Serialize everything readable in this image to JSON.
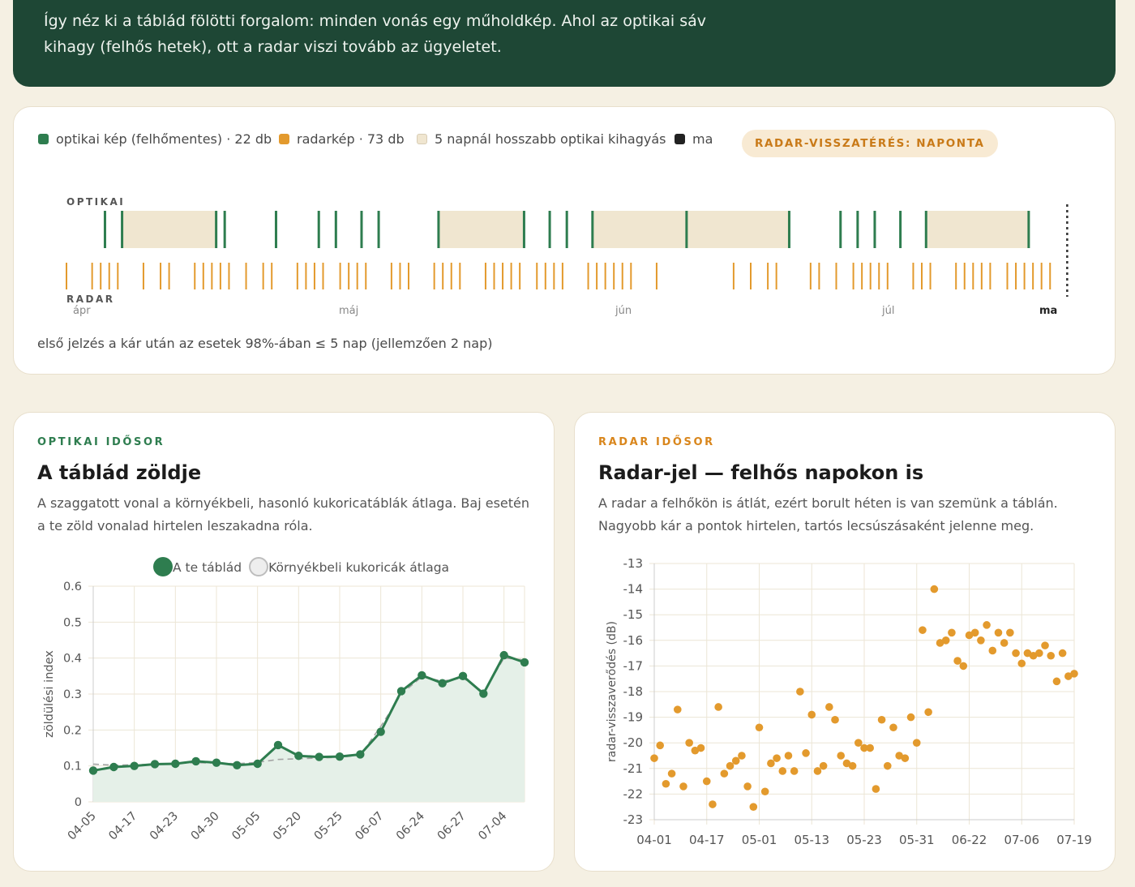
{
  "intro": "Így néz ki a táblád fölötti forgalom: minden vonás egy műholdkép. Ahol az optikai sáv kihagy (felhős hetek), ott a radar viszi tovább az ügyeletet.",
  "timeline": {
    "legend": [
      {
        "label": "optikai kép (felhőmentes) · 22 db",
        "color": "#2e7d4f"
      },
      {
        "label": "radarkép · 73 db",
        "color": "#e39a2d"
      },
      {
        "label": "5 napnál hosszabb optikai kihagyás",
        "color": "#f0e6d0"
      },
      {
        "label": "ma",
        "color": "#222222"
      }
    ],
    "badge": "RADAR-VISSZATÉRÉS: NAPONTA",
    "optical_label": "OPTIKAI",
    "radar_label": "RADAR",
    "months": [
      "ápr",
      "máj",
      "jún",
      "júl",
      "ma"
    ],
    "footnote": "első jelzés a kár után az esetek 98%-ában ≤ 5 nap (jellemzően 2 nap)",
    "optical_lines_day": [
      4.5,
      6.5,
      17.5,
      18.5,
      24.5,
      29.5,
      31.5,
      34.5,
      36.5,
      43.5,
      53.5,
      56.5,
      58.5,
      61.5,
      72.5,
      84.5,
      90.5,
      92.5,
      94.5,
      97.5,
      100.5,
      112.5
    ],
    "optical_gaps_day": [
      [
        6.5,
        17.5
      ],
      [
        43.5,
        53.5
      ],
      [
        61.5,
        84.5
      ],
      [
        100.5,
        112.5
      ]
    ],
    "radar_lines_day": [
      0,
      3,
      4,
      5,
      6,
      9,
      11,
      12,
      15,
      16,
      17,
      18,
      19,
      21,
      23,
      24,
      27,
      28,
      29,
      30,
      32,
      33,
      34,
      35,
      38,
      39,
      40,
      43,
      44,
      45,
      46,
      49,
      50,
      51,
      52,
      53,
      55,
      56,
      57,
      58,
      61,
      62,
      63,
      64,
      65,
      66,
      69,
      78,
      80,
      82,
      83,
      87,
      88,
      90,
      92,
      93,
      94,
      95,
      96,
      99,
      100,
      101,
      104,
      105,
      106,
      107,
      108,
      110,
      111,
      112,
      113,
      114,
      115
    ],
    "today_day": 117
  },
  "optical": {
    "eyebrow": "OPTIKAI IDŐSOR",
    "title": "A táblád zöldje",
    "desc": "A szaggatott vonal a környékbeli, hasonló kukoricatáblák átlaga. Baj esetén a te zöld vonalad hirtelen leszakadna róla.",
    "legend_field": "A te táblád",
    "legend_avg": "Környékbeli kukoricák átlaga",
    "colors": {
      "field": "#2e7d4f",
      "avg": "#b5b5b5"
    }
  },
  "radar": {
    "eyebrow": "RADAR IDŐSOR",
    "title": "Radar-jel — felhős napokon is",
    "desc": "A radar a felhőkön is átlát, ezért borult héten is van szemünk a táblán. Nagyobb kár a pontok hirtelen, tartós lecsúszásaként jelenne meg.",
    "color": "#e39a2d"
  },
  "chart_data": [
    {
      "type": "line",
      "title": "A táblád zöldje",
      "ylabel": "zöldülési index",
      "xlabel": "",
      "ylim": [
        0,
        0.6
      ],
      "yticks": [
        0,
        0.1,
        0.2,
        0.3,
        0.4,
        0.5,
        0.6
      ],
      "tick_labels": [
        "04-05",
        "04-17",
        "04-23",
        "04-30",
        "05-05",
        "05-20",
        "05-25",
        "06-07",
        "06-24",
        "06-27",
        "07-04"
      ],
      "categories": [
        "04-05",
        "",
        "04-17",
        "",
        "04-23",
        "",
        "04-30",
        "",
        "05-05",
        "",
        "05-20",
        "",
        "05-25",
        "",
        "06-07",
        "",
        "06-24",
        "",
        "06-27",
        "",
        "07-04",
        ""
      ],
      "grid": true,
      "legend_position": "top",
      "series": [
        {
          "name": "A te táblád",
          "values": [
            0.087,
            0.097,
            0.1,
            0.105,
            0.106,
            0.113,
            0.109,
            0.102,
            0.106,
            0.158,
            0.128,
            0.125,
            0.126,
            0.132,
            0.195,
            0.308,
            0.352,
            0.33,
            0.35,
            0.301,
            0.408,
            0.388
          ]
        },
        {
          "name": "Környékbeli kukoricák átlaga",
          "values": [
            0.105,
            0.102,
            0.103,
            0.105,
            0.107,
            0.109,
            0.108,
            0.106,
            0.11,
            0.118,
            0.12,
            0.122,
            0.124,
            0.13,
            0.21,
            0.3,
            0.348,
            0.336,
            0.345,
            0.305,
            0.4,
            0.395
          ]
        }
      ]
    },
    {
      "type": "scatter",
      "title": "Radar-jel — felhős napokon is",
      "ylabel": "radar-visszaverődés (dB)",
      "xlabel": "",
      "ylim": [
        -23,
        -13
      ],
      "yticks": [
        -23,
        -22,
        -21,
        -20,
        -19,
        -18,
        -17,
        -16,
        -15,
        -14,
        -13
      ],
      "x_tick_labels": [
        "04-01",
        "04-17",
        "05-01",
        "05-13",
        "05-23",
        "05-31",
        "06-22",
        "07-06",
        "07-19"
      ],
      "grid": true,
      "series": [
        {
          "name": "",
          "values": [
            -20.6,
            -20.1,
            -21.6,
            -21.2,
            -18.7,
            -21.7,
            -20.0,
            -20.3,
            -20.2,
            -21.5,
            -22.4,
            -18.6,
            -21.2,
            -20.9,
            -20.7,
            -20.5,
            -21.7,
            -22.5,
            -19.4,
            -21.9,
            -20.8,
            -20.6,
            -21.1,
            -20.5,
            -21.1,
            -18.0,
            -20.4,
            -18.9,
            -21.1,
            -20.9,
            -18.6,
            -19.1,
            -20.5,
            -20.8,
            -20.9,
            -20.0,
            -20.2,
            -20.2,
            -21.8,
            -19.1,
            -20.9,
            -19.4,
            -20.5,
            -20.6,
            -19.0,
            -20.0,
            -15.6,
            -18.8,
            -14.0,
            -16.1,
            -16.0,
            -15.7,
            -16.8,
            -17.0,
            -15.8,
            -15.7,
            -16.0,
            -15.4,
            -16.4,
            -15.7,
            -16.1,
            -15.7,
            -16.5,
            -16.9,
            -16.5,
            -16.6,
            -16.5,
            -16.2,
            -16.6,
            -17.6,
            -16.5,
            -17.4,
            -17.3
          ]
        }
      ]
    }
  ]
}
